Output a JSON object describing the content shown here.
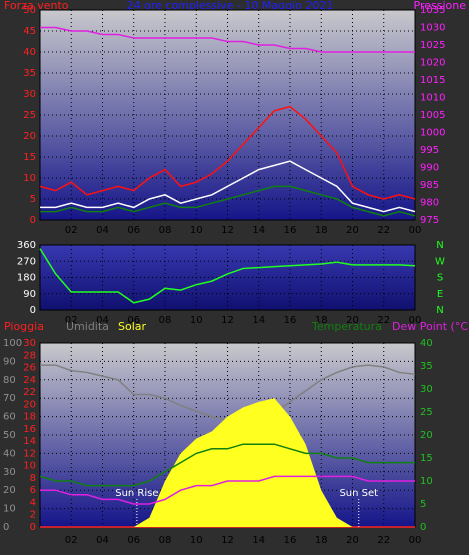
{
  "chart_data": [
    {
      "type": "line",
      "title": "24 ore complessive - 10 Maggio 2021",
      "ylabel": "Forza vento",
      "y2label": "Pressione",
      "x": [
        0,
        1,
        2,
        3,
        4,
        5,
        6,
        7,
        8,
        9,
        10,
        11,
        12,
        13,
        14,
        15,
        16,
        17,
        18,
        19,
        20,
        21,
        22,
        23,
        24
      ],
      "xlim": [
        0,
        24
      ],
      "xticks": [
        {
          "value": 2,
          "label": "02"
        },
        {
          "value": 4,
          "label": "04"
        },
        {
          "value": 6,
          "label": "06"
        },
        {
          "value": 8,
          "label": "08"
        },
        10,
        12,
        14,
        16,
        18,
        20,
        22,
        {
          "value": 24,
          "label": "00"
        }
      ],
      "ylim": [
        0,
        50
      ],
      "yticks": [
        0,
        5,
        10,
        15,
        20,
        25,
        30,
        35,
        40,
        45,
        50
      ],
      "y2lim": [
        975,
        1035
      ],
      "y2ticks": [
        975,
        980,
        985,
        990,
        995,
        1000,
        1005,
        1010,
        1015,
        1020,
        1025,
        1030,
        1035
      ],
      "grid": true,
      "series": [
        {
          "color": "#ff1010",
          "values": [
            8,
            7,
            9,
            6,
            7,
            8,
            7,
            10,
            12,
            8,
            9,
            11,
            14,
            18,
            22,
            26,
            27,
            24,
            20,
            16,
            8,
            6,
            5,
            6,
            5
          ]
        },
        {
          "color": "#108010",
          "values": [
            2,
            2,
            3,
            2,
            2,
            3,
            2,
            3,
            4,
            3,
            3,
            4,
            5,
            6,
            7,
            8,
            8,
            7,
            6,
            5,
            3,
            2,
            1,
            2,
            1
          ]
        },
        {
          "color": "#ffffff",
          "values": [
            3,
            3,
            4,
            3,
            3,
            4,
            3,
            5,
            6,
            4,
            5,
            6,
            8,
            10,
            12,
            13,
            14,
            12,
            10,
            8,
            4,
            3,
            2,
            3,
            2
          ]
        },
        {
          "color": "#e020e0",
          "axis": "y2",
          "values": [
            1030,
            1030,
            1029,
            1029,
            1028,
            1028,
            1027,
            1027,
            1027,
            1027,
            1027,
            1027,
            1026,
            1026,
            1025,
            1025,
            1024,
            1024,
            1023,
            1023,
            1023,
            1023,
            1023,
            1023,
            1023
          ]
        }
      ]
    },
    {
      "type": "line",
      "x": [
        0,
        1,
        2,
        3,
        4,
        5,
        6,
        7,
        8,
        9,
        10,
        11,
        12,
        13,
        14,
        15,
        16,
        17,
        18,
        19,
        20,
        21,
        22,
        23,
        24
      ],
      "xlim": [
        0,
        24
      ],
      "xticks": [
        {
          "value": 2,
          "label": "02"
        },
        {
          "value": 4,
          "label": "04"
        },
        {
          "value": 6,
          "label": "06"
        },
        {
          "value": 8,
          "label": "08"
        },
        10,
        12,
        14,
        16,
        18,
        20,
        22,
        {
          "value": 24,
          "label": "00"
        }
      ],
      "ylim": [
        0,
        360
      ],
      "yticks": [
        0,
        90,
        180,
        270,
        360
      ],
      "y2lim": [
        0,
        360
      ],
      "y2ticks": [
        {
          "value": 0,
          "label": "N"
        },
        {
          "value": 90,
          "label": "E"
        },
        {
          "value": 180,
          "label": "S"
        },
        {
          "value": 270,
          "label": "W"
        },
        {
          "value": 360,
          "label": "N"
        }
      ],
      "grid": true,
      "series": [
        {
          "color": "#20ff20",
          "values": [
            340,
            200,
            100,
            100,
            100,
            100,
            40,
            60,
            120,
            110,
            140,
            160,
            200,
            230,
            235,
            240,
            245,
            250,
            255,
            265,
            250,
            250,
            250,
            250,
            245
          ]
        }
      ]
    },
    {
      "type": "line",
      "x": [
        0,
        1,
        2,
        3,
        4,
        5,
        6,
        7,
        8,
        9,
        10,
        11,
        12,
        13,
        14,
        15,
        16,
        17,
        18,
        19,
        20,
        21,
        22,
        23,
        24
      ],
      "xlim": [
        0,
        24
      ],
      "xticks": [
        {
          "value": 2,
          "label": "02"
        },
        {
          "value": 4,
          "label": "04"
        },
        {
          "value": 6,
          "label": "06"
        },
        {
          "value": 8,
          "label": "08"
        },
        10,
        12,
        14,
        16,
        18,
        20,
        22,
        {
          "value": 24,
          "label": "00"
        }
      ],
      "ylim": [
        0,
        100
      ],
      "yticks": [
        0,
        10,
        20,
        30,
        40,
        50,
        60,
        70,
        80,
        90,
        100
      ],
      "y2lim": [
        0,
        40
      ],
      "y2ticks": [
        0,
        5,
        10,
        15,
        20,
        25,
        30,
        35,
        40
      ],
      "y3lim": [
        0,
        30
      ],
      "y3ticks": [
        0,
        2,
        4,
        6,
        8,
        10,
        12,
        14,
        16,
        18,
        20,
        22,
        24,
        26,
        28,
        30
      ],
      "grid": true,
      "series": [
        {
          "name": "Pioggia",
          "color": "#ff2020",
          "axis": "y3",
          "values": [
            0,
            0,
            0,
            0,
            0,
            0,
            0,
            0,
            0,
            0,
            0,
            0,
            0,
            0,
            0,
            0,
            0,
            0,
            0,
            0,
            0,
            0,
            0,
            0,
            0
          ]
        },
        {
          "name": "Umidita",
          "color": "#808080",
          "values": [
            88,
            88,
            85,
            84,
            82,
            80,
            72,
            72,
            70,
            66,
            63,
            60,
            58,
            58,
            58,
            62,
            68,
            74,
            80,
            84,
            87,
            88,
            87,
            84,
            83
          ]
        },
        {
          "name": "Solar",
          "color": "#ffff20",
          "area": true,
          "values": [
            0,
            0,
            0,
            0,
            0,
            0,
            0,
            5,
            25,
            40,
            48,
            52,
            60,
            65,
            68,
            70,
            60,
            45,
            20,
            5,
            0,
            0,
            0,
            0,
            0
          ]
        },
        {
          "name": "Temperatura",
          "color": "#108010",
          "axis": "y2",
          "values": [
            11,
            10,
            10,
            9,
            9,
            9,
            9,
            10,
            12,
            14,
            16,
            17,
            17,
            18,
            18,
            18,
            17,
            16,
            16,
            15,
            15,
            14,
            14,
            14,
            14
          ]
        },
        {
          "name": "Dew Point (°C)",
          "color": "#e020e0",
          "axis": "y2",
          "values": [
            8,
            8,
            7,
            7,
            6,
            6,
            5,
            5,
            6,
            8,
            9,
            9,
            10,
            10,
            10,
            11,
            11,
            11,
            11,
            11,
            11,
            10,
            10,
            10,
            10
          ]
        }
      ],
      "annotations": [
        {
          "text": "Sun Rise",
          "x": 6.2
        },
        {
          "text": "Sun Set",
          "x": 20.4
        }
      ]
    }
  ]
}
